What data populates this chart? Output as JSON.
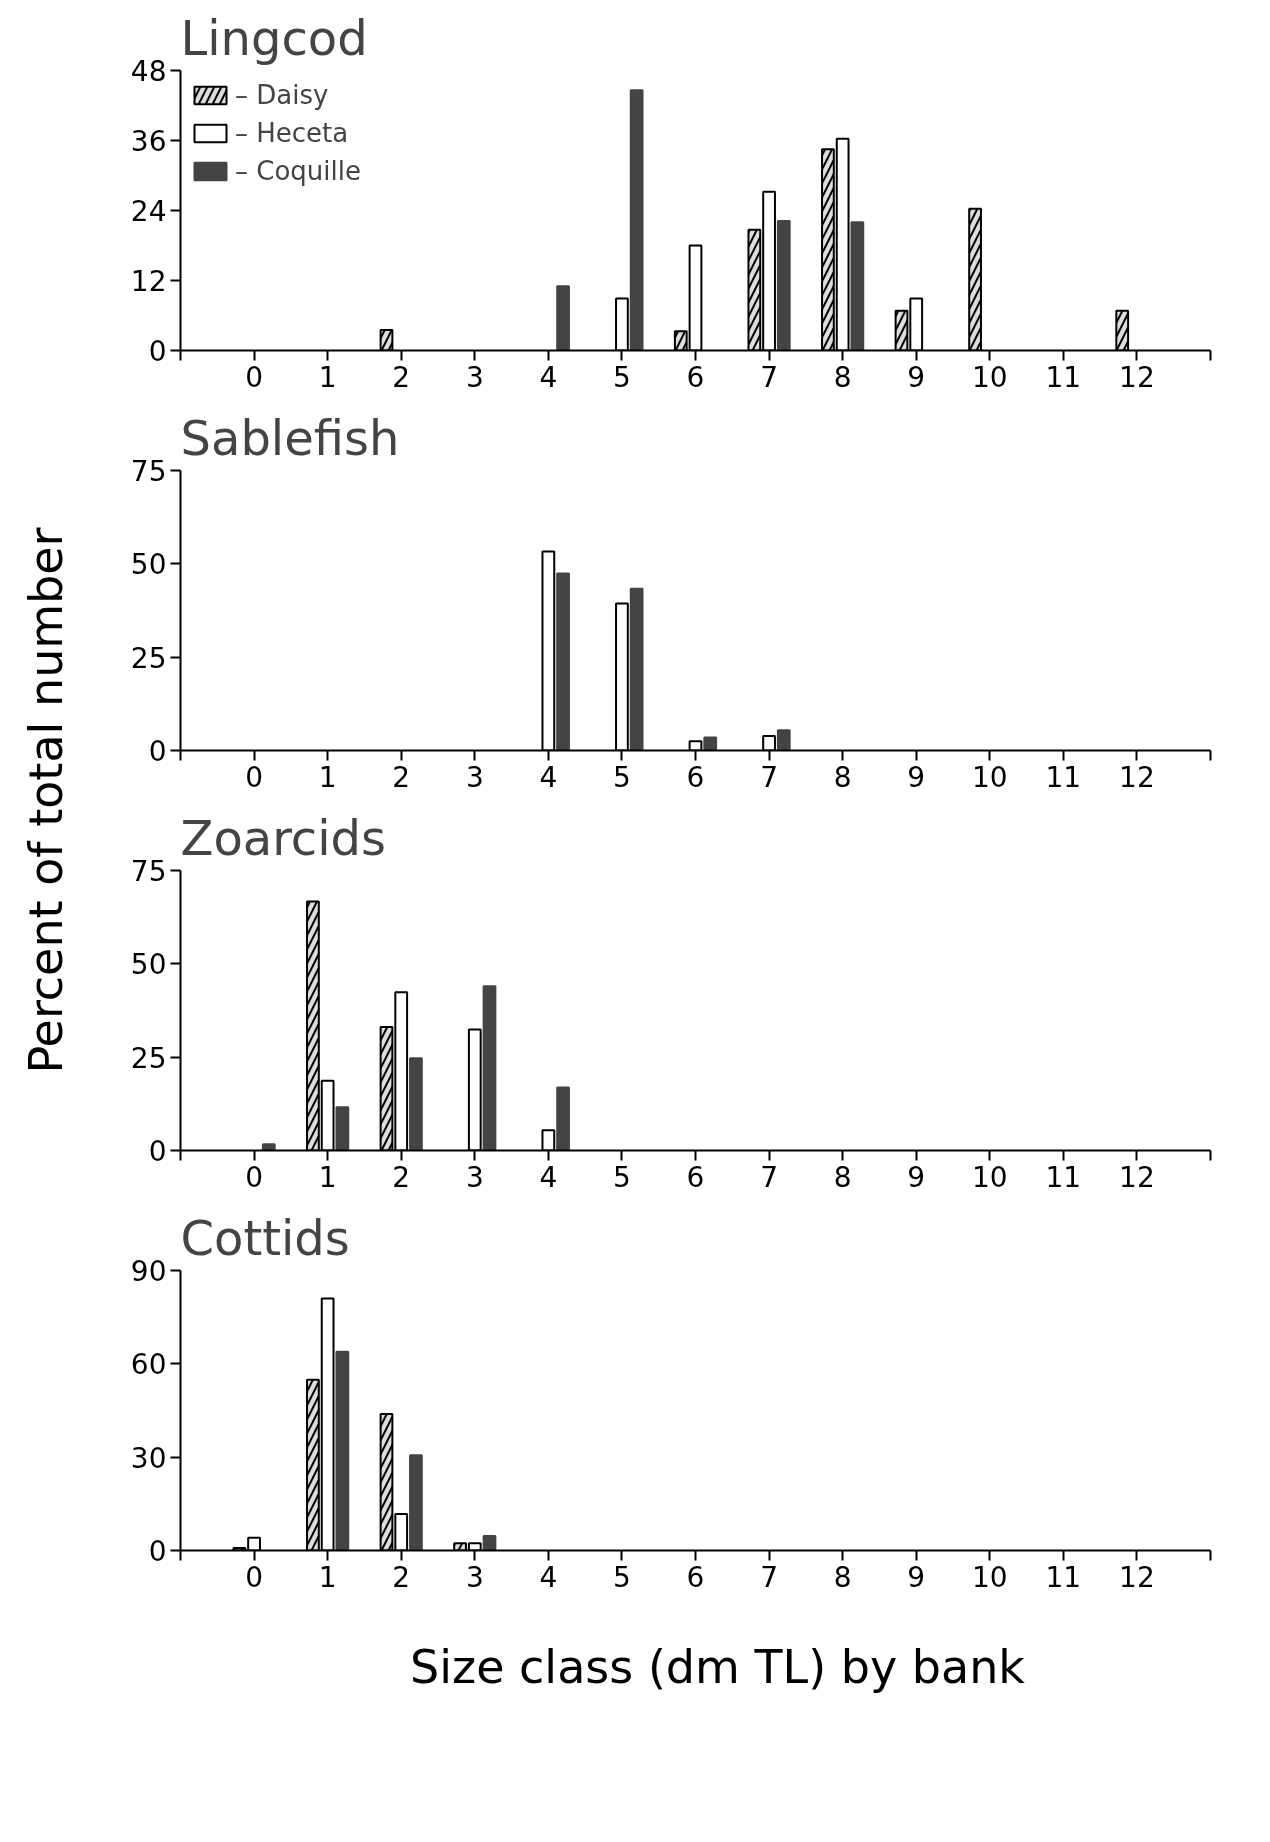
{
  "chart_data": [
    {
      "type": "bar",
      "title": "Lingcod",
      "ylabel": "Percent of total number",
      "xlim": [
        -1,
        13
      ],
      "xticks": [
        0,
        1,
        2,
        3,
        4,
        5,
        6,
        7,
        8,
        9,
        10,
        11,
        12
      ],
      "ylim": [
        0,
        48
      ],
      "yticks": [
        0,
        12,
        24,
        36,
        48
      ],
      "grid": false,
      "legend": "top left",
      "series": [
        {
          "name": "– Daisy",
          "color": "#dddddd",
          "x": [
            2,
            6,
            7,
            8,
            9,
            10,
            12
          ],
          "values": [
            3.5,
            3.3,
            20.7,
            34.5,
            6.8,
            24.3,
            6.8
          ]
        },
        {
          "name": "– Heceta",
          "color": "#ffffff",
          "x": [
            5,
            6,
            7,
            8,
            9
          ],
          "values": [
            8.9,
            18,
            27.2,
            36.3,
            8.9
          ]
        },
        {
          "name": "– Coquille",
          "color": "#444444",
          "x": [
            4,
            5,
            7,
            8
          ],
          "values": [
            11,
            44.6,
            22.2,
            22
          ]
        }
      ]
    },
    {
      "type": "bar",
      "title": "Sablefish",
      "xlim": [
        -1,
        13
      ],
      "xticks": [
        0,
        1,
        2,
        3,
        4,
        5,
        6,
        7,
        8,
        9,
        10,
        11,
        12
      ],
      "ylim": [
        0,
        75
      ],
      "yticks": [
        0,
        25,
        50,
        75
      ],
      "grid": false,
      "series": [
        {
          "color": "#dddddd"
        },
        {
          "color": "#ffffff",
          "x": [
            4,
            5,
            6,
            7
          ],
          "values": [
            53.3,
            39.4,
            2.5,
            3.9
          ]
        },
        {
          "color": "#444444",
          "x": [
            4,
            5,
            6,
            7
          ],
          "values": [
            47.4,
            43.3,
            3.5,
            5.4
          ]
        }
      ]
    },
    {
      "type": "bar",
      "title": "Zoarcids",
      "xlim": [
        -1,
        13
      ],
      "xticks": [
        0,
        1,
        2,
        3,
        4,
        5,
        6,
        7,
        8,
        9,
        10,
        11,
        12
      ],
      "ylim": [
        0,
        75
      ],
      "yticks": [
        0,
        25,
        50,
        75
      ],
      "grid": false,
      "series": [
        {
          "color": "#dddddd",
          "x": [
            1,
            2
          ],
          "values": [
            66.7,
            33.1
          ]
        },
        {
          "color": "#ffffff",
          "x": [
            1,
            2,
            3,
            4
          ],
          "values": [
            18.7,
            42.4,
            32.4,
            5.4
          ]
        },
        {
          "color": "#444444",
          "x": [
            0,
            1,
            2,
            3,
            4
          ],
          "values": [
            1.7,
            11.6,
            24.7,
            44,
            16.9
          ]
        }
      ]
    },
    {
      "type": "bar",
      "title": "Cottids",
      "xlabel": "Size class (dm TL) by bank",
      "xlim": [
        -1,
        13
      ],
      "xticks": [
        0,
        1,
        2,
        3,
        4,
        5,
        6,
        7,
        8,
        9,
        10,
        11,
        12
      ],
      "ylim": [
        0,
        90
      ],
      "yticks": [
        0,
        30,
        60,
        90
      ],
      "grid": false,
      "series": [
        {
          "color": "#dddddd",
          "x": [
            0,
            1,
            2,
            3
          ],
          "values": [
            0.8,
            54.9,
            43.9,
            2.3
          ]
        },
        {
          "color": "#ffffff",
          "x": [
            0,
            1,
            2,
            3
          ],
          "values": [
            4.1,
            81,
            11.7,
            2.3
          ]
        },
        {
          "color": "#444444",
          "x": [
            1,
            2,
            3
          ],
          "values": [
            63.9,
            30.6,
            4.7
          ]
        }
      ]
    }
  ]
}
